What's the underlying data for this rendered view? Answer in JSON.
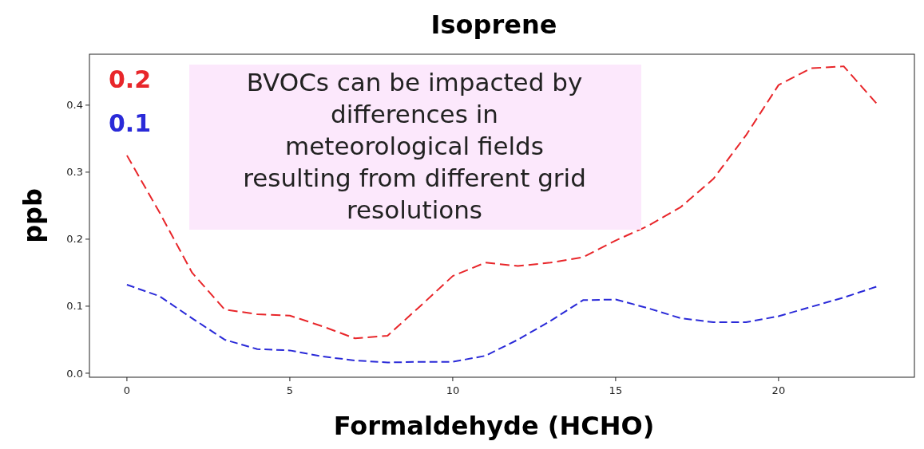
{
  "chart_data": {
    "type": "line",
    "title": "Isoprene",
    "xlabel": "Formaldehyde (HCHO)",
    "ylabel": "ppb",
    "x": [
      0,
      1,
      2,
      3,
      4,
      5,
      6,
      7,
      8,
      9,
      10,
      11,
      12,
      13,
      14,
      15,
      16,
      17,
      18,
      19,
      20,
      21,
      22,
      23
    ],
    "series": [
      {
        "name": "0.2",
        "color": "#e8262a",
        "values": [
          0.325,
          0.24,
          0.15,
          0.095,
          0.088,
          0.086,
          0.07,
          0.052,
          0.056,
          0.1,
          0.145,
          0.165,
          0.16,
          0.165,
          0.173,
          0.198,
          0.22,
          0.248,
          0.29,
          0.355,
          0.43,
          0.455,
          0.458,
          0.403
        ]
      },
      {
        "name": "0.1",
        "color": "#2a2ad8",
        "values": [
          0.132,
          0.115,
          0.082,
          0.05,
          0.036,
          0.034,
          0.025,
          0.019,
          0.016,
          0.017,
          0.017,
          0.026,
          0.05,
          0.078,
          0.109,
          0.11,
          0.097,
          0.082,
          0.076,
          0.076,
          0.085,
          0.099,
          0.113,
          0.129
        ]
      }
    ],
    "xlim": [
      -1.15,
      24.17
    ],
    "xticks": [
      0,
      5,
      10,
      15,
      20
    ],
    "ylim": [
      -0.006,
      0.476
    ],
    "yticks": [
      {
        "value": 0,
        "label": "0.0"
      },
      0.1,
      0.2,
      0.3,
      0.4
    ],
    "line_style": "dashed",
    "legend": "top left",
    "grid": false,
    "annotations": [
      "BVOCs can be impacted by\ndifferences in\nmeteorological fields\nresulting from different grid\nresolutions"
    ]
  }
}
